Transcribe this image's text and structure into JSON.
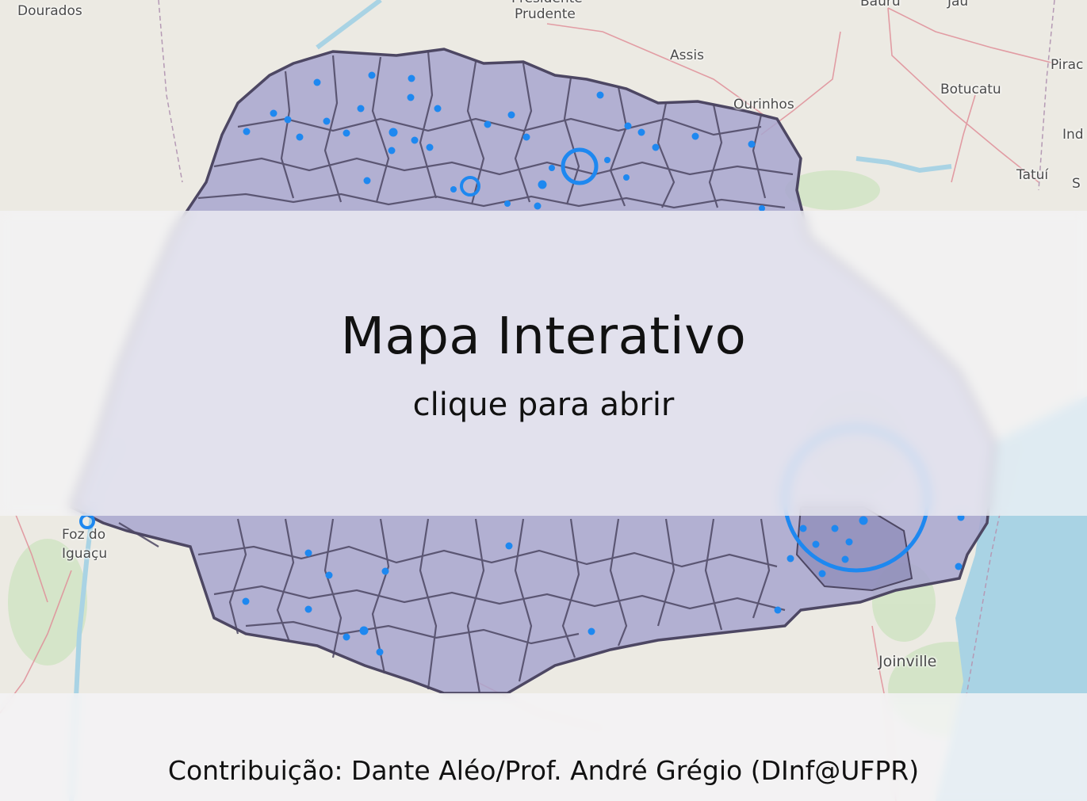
{
  "overlay": {
    "title": "Mapa Interativo",
    "subtitle": "clique para abrir"
  },
  "footer": {
    "credit": "Contribuição: Dante Aléo/Prof. André Grégio (DInf@UFPR)"
  },
  "map": {
    "city_labels": {
      "dourados": "Dourados",
      "presidente": "Presidente",
      "prudente": "Prudente",
      "bauru": "Bauru",
      "jau": "Jaú",
      "assis": "Assis",
      "piracicaba": "Pirac",
      "botucatu": "Botucatu",
      "ourinhos": "Ourinhos",
      "indaiatuba": "Ind",
      "tatui": "Tatuí",
      "sorocaba": "S",
      "foz1": "Foz do",
      "foz2": "Iguaçu",
      "joinville": "Joinville"
    },
    "colors": {
      "region_fill": "#a8a6cf",
      "region_border": "#4d4763",
      "marker": "#1e88f0",
      "water": "#a9d3e4",
      "land": "#eceae3"
    }
  }
}
